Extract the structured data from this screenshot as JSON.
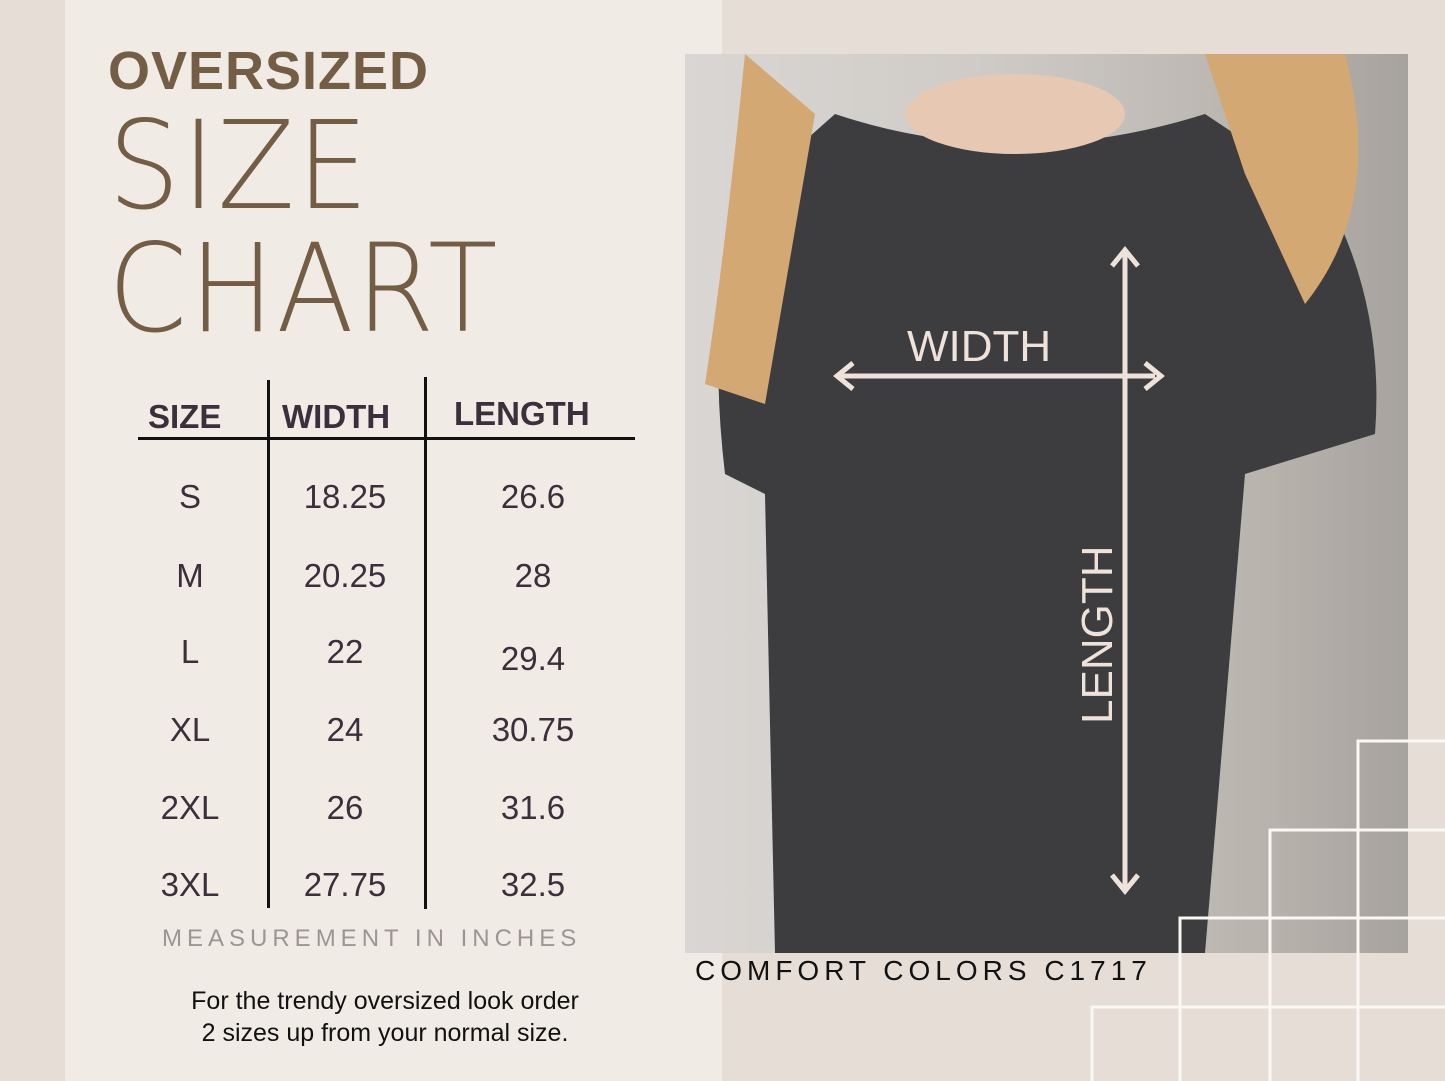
{
  "title": {
    "line1": "OVERSIZED",
    "line2": "SIZE",
    "line3": "CHART"
  },
  "table": {
    "headers": [
      "SIZE",
      "WIDTH",
      "LENGTH"
    ],
    "rows": [
      [
        "S",
        "18.25",
        "26.6"
      ],
      [
        "M",
        "20.25",
        "28"
      ],
      [
        "L",
        "22",
        "29.4"
      ],
      [
        "XL",
        "24",
        "30.75"
      ],
      [
        "2XL",
        "26",
        "31.6"
      ],
      [
        "3XL",
        "27.75",
        "32.5"
      ]
    ]
  },
  "measurement_note": "MEASUREMENT IN INCHES",
  "note": {
    "line1": "For the trendy oversized look order",
    "line2": "2 sizes up from your normal size."
  },
  "photo": {
    "width_label": "WIDTH",
    "length_label": "LENGTH"
  },
  "brand": "COMFORT COLORS C1717",
  "colors": {
    "title": "#735d45",
    "text": "#3a2f3a",
    "panel": "#f1ebe6",
    "background": "#e6ddd6"
  }
}
